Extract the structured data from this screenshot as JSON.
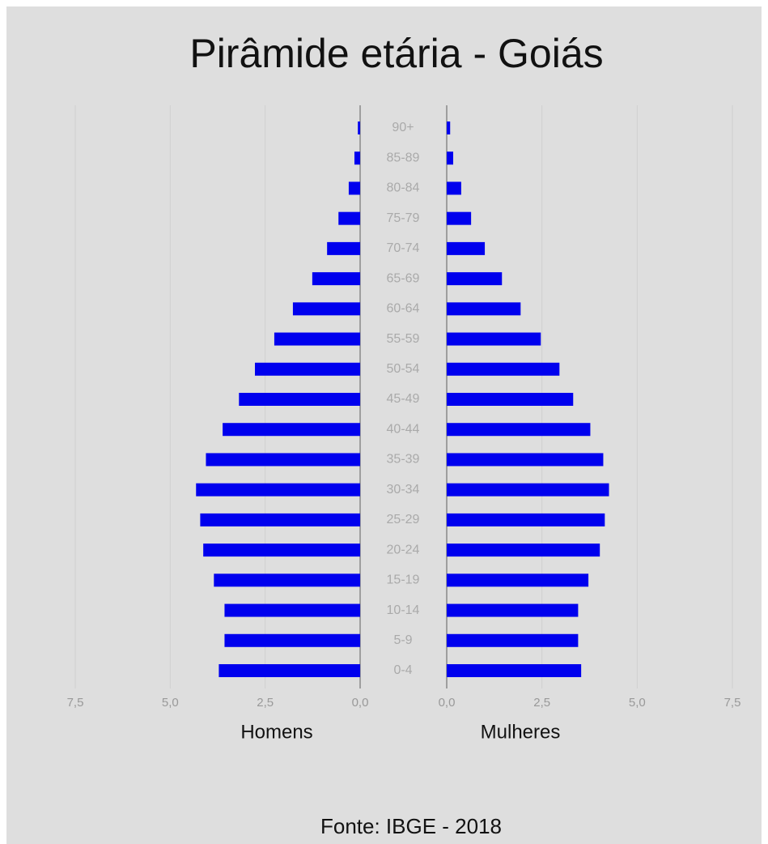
{
  "chart_data": {
    "type": "pyramid",
    "title": "Pirâmide etária - Goiás",
    "source": "Fonte: IBGE - 2018",
    "categories": [
      "90+",
      "85-89",
      "80-84",
      "75-79",
      "70-74",
      "65-69",
      "60-64",
      "55-59",
      "50-54",
      "45-49",
      "40-44",
      "35-39",
      "30-34",
      "25-29",
      "20-24",
      "15-19",
      "10-14",
      "5-9",
      "0-4"
    ],
    "series": [
      {
        "name": "Homens",
        "color": "#0000ee",
        "values": [
          0.06,
          0.15,
          0.3,
          0.57,
          0.87,
          1.26,
          1.77,
          2.26,
          2.77,
          3.19,
          3.62,
          4.06,
          4.32,
          4.21,
          4.13,
          3.85,
          3.57,
          3.57,
          3.72
        ]
      },
      {
        "name": "Mulheres",
        "color": "#0000ee",
        "values": [
          0.09,
          0.17,
          0.38,
          0.64,
          1.0,
          1.45,
          1.94,
          2.47,
          2.96,
          3.32,
          3.77,
          4.11,
          4.26,
          4.15,
          4.02,
          3.72,
          3.45,
          3.45,
          3.53
        ]
      }
    ],
    "xlim": [
      0,
      7.5
    ],
    "xticks": [
      {
        "value": 0,
        "label": "0,0"
      },
      {
        "value": 2.5,
        "label": "2,5"
      },
      {
        "value": 5,
        "label": "5,0"
      },
      {
        "value": 7.5,
        "label": "7,5"
      }
    ],
    "grid": true
  }
}
